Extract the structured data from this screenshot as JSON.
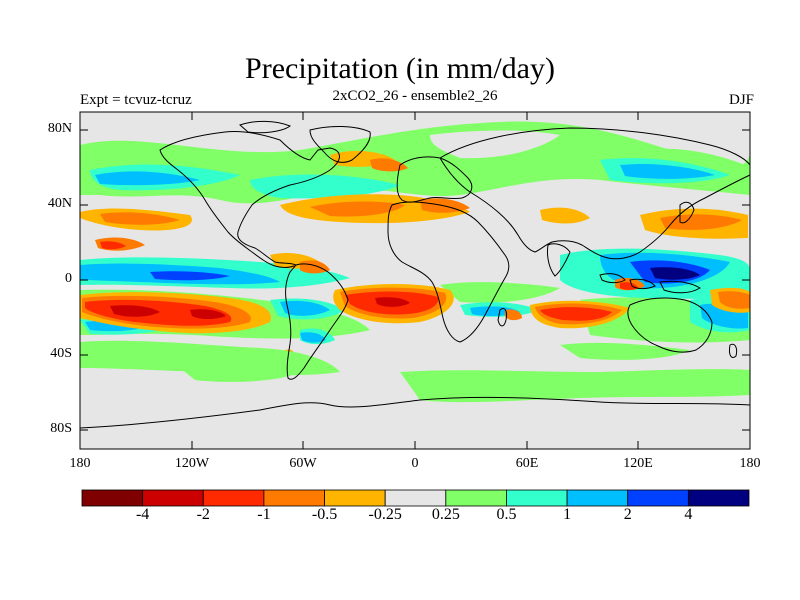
{
  "title": "Precipitation (in mm/day)",
  "subtitle": "2xCO2_26 - ensemble2_26",
  "left_label": "Expt = tcvuz-tcruz",
  "right_label": "DJF",
  "y_ticks": [
    "80N",
    "40N",
    "0",
    "40S",
    "80S"
  ],
  "x_ticks": [
    "180",
    "120W",
    "60W",
    "0",
    "60E",
    "120E",
    "180"
  ],
  "colorbar": {
    "labels": [
      "-4",
      "-2",
      "-1",
      "-0.5",
      "-0.25",
      "0.25",
      "0.5",
      "1",
      "2",
      "4"
    ],
    "colors": [
      "#7f0000",
      "#cc0000",
      "#ff2a00",
      "#ff7a00",
      "#ffb400",
      "#e6e6e6",
      "#80ff66",
      "#33ffcc",
      "#00bfff",
      "#0040ff",
      "#000080"
    ]
  }
}
